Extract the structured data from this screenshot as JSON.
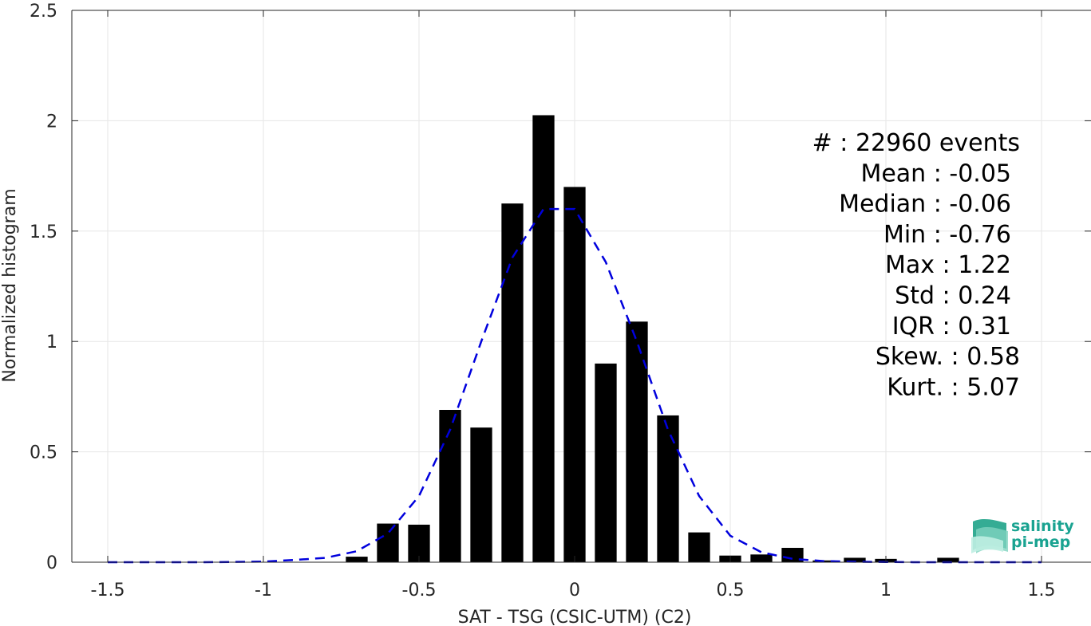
{
  "chart_data": {
    "type": "bar",
    "xlabel": "SAT - TSG (CSIC-UTM) (C2)",
    "ylabel": "Normalized histogram",
    "xlim": [
      -1.5,
      1.5
    ],
    "ylim": [
      0,
      2.5
    ],
    "xticks": [
      -1.5,
      -1,
      -0.5,
      0,
      0.5,
      1,
      1.5
    ],
    "xtick_labels": [
      "-1.5",
      "-1",
      "-0.5",
      "0",
      "0.5",
      "1",
      "1.5"
    ],
    "yticks": [
      0,
      0.5,
      1,
      1.5,
      2,
      2.5
    ],
    "ytick_labels": [
      "0",
      "0.5",
      "1",
      "1.5",
      "2",
      "2.5"
    ],
    "grid": true,
    "bar_width": 0.07,
    "bar_color": "#000000",
    "bars": {
      "x": [
        -0.7,
        -0.6,
        -0.5,
        -0.4,
        -0.3,
        -0.2,
        -0.1,
        0.0,
        0.1,
        0.2,
        0.3,
        0.4,
        0.5,
        0.6,
        0.7,
        0.8,
        0.9,
        1.0,
        1.2
      ],
      "values": [
        0.025,
        0.175,
        0.17,
        0.69,
        0.61,
        1.625,
        2.025,
        1.7,
        0.9,
        1.09,
        0.665,
        0.135,
        0.03,
        0.035,
        0.065,
        0.008,
        0.02,
        0.015,
        0.02
      ]
    },
    "fit_curve": {
      "style": "dashed",
      "color": "#0000dd",
      "x": [
        -1.5,
        -1.4,
        -1.3,
        -1.2,
        -1.1,
        -1.0,
        -0.9,
        -0.8,
        -0.7,
        -0.6,
        -0.5,
        -0.4,
        -0.3,
        -0.2,
        -0.1,
        0.0,
        0.1,
        0.2,
        0.3,
        0.4,
        0.5,
        0.6,
        0.7,
        0.8,
        0.9,
        1.0,
        1.1,
        1.2,
        1.3,
        1.4,
        1.5
      ],
      "y": [
        0,
        0,
        0,
        0,
        0.001,
        0.003,
        0.01,
        0.02,
        0.05,
        0.13,
        0.3,
        0.6,
        1.0,
        1.38,
        1.6,
        1.6,
        1.36,
        1.0,
        0.6,
        0.3,
        0.12,
        0.045,
        0.015,
        0.005,
        0.002,
        0.001,
        0,
        0,
        0,
        0,
        0
      ]
    },
    "stats": [
      "#  : 22960 events",
      "Mean : -0.05",
      "Median : -0.06",
      "Min : -0.76",
      "Max : 1.22",
      "Std : 0.24",
      "IQR : 0.31",
      "Skew. : 0.58",
      "Kurt. : 5.07"
    ]
  },
  "logo": {
    "line1": "salinity",
    "line2": "pi-mep",
    "color": "#1aa391"
  }
}
